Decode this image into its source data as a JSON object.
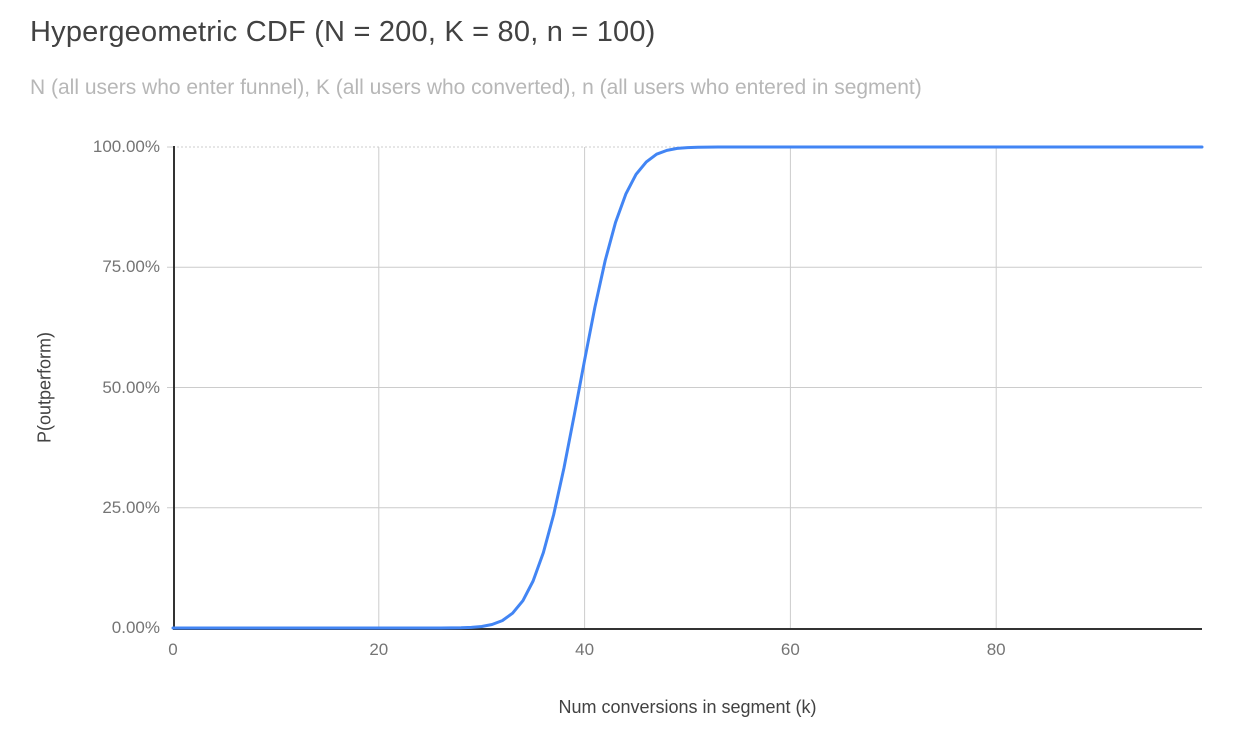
{
  "chart_data": {
    "type": "line",
    "title": "Hypergeometric CDF (N = 200, K = 80, n = 100)",
    "subtitle": "N (all users who enter funnel), K (all users who converted), n (all users who entered in segment)",
    "xlabel": "Num conversions in segment (k)",
    "ylabel": "P(outperform)",
    "x_min": 0,
    "x_max": 100,
    "y_min": 0,
    "y_max": 1,
    "grid": true,
    "legend": "none",
    "line_color": "#4285f4",
    "axis_color": "#333333",
    "gridline_color": "#cccccc",
    "x_ticks": [
      {
        "label": "0",
        "value": 0
      },
      {
        "label": "20",
        "value": 20
      },
      {
        "label": "40",
        "value": 40
      },
      {
        "label": "60",
        "value": 60
      },
      {
        "label": "80",
        "value": 80
      }
    ],
    "y_ticks": [
      {
        "label": "0.00%",
        "value": 0
      },
      {
        "label": "25.00%",
        "value": 0.25
      },
      {
        "label": "50.00%",
        "value": 0.5
      },
      {
        "label": "75.00%",
        "value": 0.75
      },
      {
        "label": "100.00%",
        "value": 1
      }
    ],
    "series": [
      {
        "x_start": 0,
        "x_step": 1,
        "values": [
          0,
          0,
          0,
          0,
          0,
          0,
          0,
          0,
          0,
          0,
          0,
          0,
          0,
          0,
          0,
          0,
          0,
          0,
          0,
          0,
          0,
          0,
          0,
          0,
          0,
          2e-05,
          5e-05,
          0.00016,
          0.0005,
          0.0012,
          0.0031,
          0.0072,
          0.0154,
          0.0307,
          0.0567,
          0.0977,
          0.157,
          0.236,
          0.333,
          0.443,
          0.557,
          0.667,
          0.764,
          0.843,
          0.902,
          0.943,
          0.969,
          0.985,
          0.993,
          0.997,
          0.9988,
          0.9995,
          0.9998,
          0.9999,
          1,
          1,
          1,
          1,
          1,
          1,
          1,
          1,
          1,
          1,
          1,
          1,
          1,
          1,
          1,
          1,
          1,
          1,
          1,
          1,
          1,
          1,
          1,
          1,
          1,
          1,
          1,
          1,
          1,
          1,
          1,
          1,
          1,
          1,
          1,
          1,
          1,
          1,
          1,
          1,
          1,
          1,
          1,
          1,
          1,
          1,
          1
        ]
      }
    ]
  }
}
